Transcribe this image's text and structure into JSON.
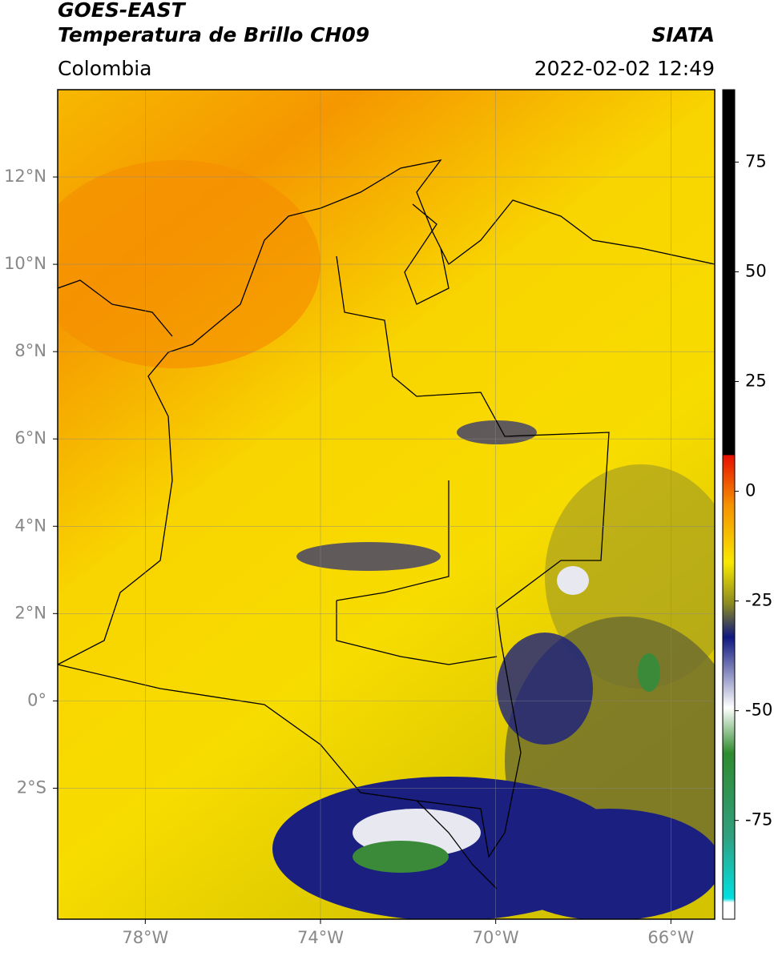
{
  "header": {
    "title": "GOES-EAST",
    "subtitle": "Temperatura de Brillo CH09",
    "source": "SIATA",
    "region": "Colombia",
    "datetime": "2022-02-02 12:49"
  },
  "map": {
    "xlim": [
      -80,
      -65
    ],
    "ylim": [
      -5,
      14
    ],
    "lon_ticks": [
      {
        "value": -78,
        "label": "78°W"
      },
      {
        "value": -74,
        "label": "74°W"
      },
      {
        "value": -70,
        "label": "70°W"
      },
      {
        "value": -66,
        "label": "66°W"
      }
    ],
    "lat_ticks": [
      {
        "value": 12,
        "label": "12°N"
      },
      {
        "value": 10,
        "label": "10°N"
      },
      {
        "value": 8,
        "label": "8°N"
      },
      {
        "value": 6,
        "label": "6°N"
      },
      {
        "value": 4,
        "label": "4°N"
      },
      {
        "value": 2,
        "label": "2°N"
      },
      {
        "value": 0,
        "label": "0°"
      },
      {
        "value": -2,
        "label": "2°S"
      }
    ],
    "grid": true
  },
  "colorbar": {
    "lim": [
      -97.5,
      91.5
    ],
    "ticks": [
      75,
      50,
      25,
      0,
      -25,
      -50,
      -75
    ]
  }
}
